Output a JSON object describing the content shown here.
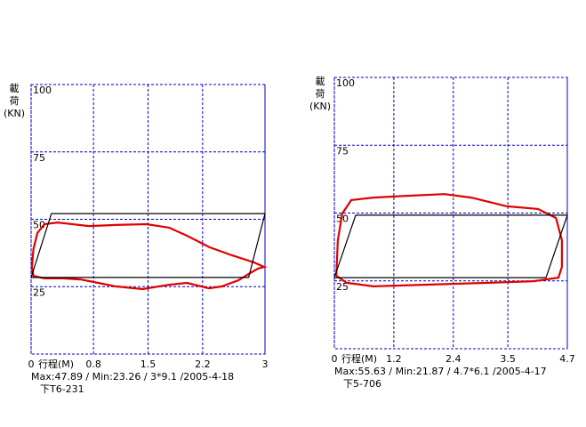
{
  "chart_data": [
    {
      "type": "line",
      "y_label": [
        "載",
        "荷",
        "(KN)"
      ],
      "x_label": "行程(M)",
      "xlim": [
        0,
        3
      ],
      "xticks": [
        0,
        0.8,
        1.5,
        2.2,
        3
      ],
      "ylim": [
        0,
        100
      ],
      "yticks": [
        25,
        50,
        75,
        100
      ],
      "grid": true,
      "series": [
        {
          "color": "#e00000",
          "x": [
            0.01,
            0.03,
            0.08,
            0.17,
            0.34,
            0.74,
            1.08,
            1.48,
            1.77,
            2.0,
            2.29,
            2.58,
            2.86,
            2.99,
            2.91,
            2.79,
            2.66,
            2.45,
            2.28,
            2.0,
            1.77,
            1.43,
            1.08,
            0.86,
            0.63,
            0.4,
            0.17,
            0.03,
            0.01
          ],
          "values": [
            32.3,
            38.9,
            44.9,
            48.2,
            48.8,
            47.5,
            47.9,
            48.2,
            46.9,
            43.9,
            39.6,
            36.6,
            34.0,
            32.3,
            31.7,
            29.7,
            27.4,
            25.1,
            24.4,
            26.4,
            25.7,
            24.1,
            25.1,
            26.4,
            27.7,
            28.1,
            28.1,
            29.0,
            32.3
          ]
        },
        {
          "color": "#000000",
          "x": [
            0,
            0.26,
            3,
            2.79,
            0
          ],
          "values": [
            28.4,
            52.1,
            52.1,
            28.4,
            28.4
          ]
        }
      ],
      "footer": [
        "Max:47.89 / Min:23.26 / 3*9.1 /2005-4-18",
        "下T6-231"
      ]
    },
    {
      "type": "line",
      "y_label": [
        "載",
        "荷",
        "(KN)"
      ],
      "x_label": "行程(M)",
      "xlim": [
        0,
        4.7
      ],
      "xticks": [
        0,
        1.2,
        2.4,
        3.5,
        4.7
      ],
      "ylim": [
        0,
        100
      ],
      "yticks": [
        25,
        50,
        75,
        100
      ],
      "grid": true,
      "series": [
        {
          "color": "#e00000",
          "x": [
            0.04,
            0.07,
            0.16,
            0.34,
            0.79,
            1.51,
            2.22,
            2.76,
            3.48,
            4.11,
            4.47,
            4.59,
            4.59,
            4.52,
            4.02,
            3.12,
            1.87,
            0.79,
            0.25,
            0.04
          ],
          "values": [
            26.9,
            40.0,
            49.8,
            54.8,
            55.7,
            56.4,
            57.0,
            55.7,
            52.5,
            51.5,
            48.2,
            40.0,
            30.2,
            26.2,
            24.9,
            24.3,
            23.6,
            23.0,
            24.3,
            26.9
          ]
        },
        {
          "color": "#000000",
          "x": [
            0,
            0.43,
            4.7,
            4.27,
            0
          ],
          "values": [
            26.2,
            49.2,
            49.2,
            26.2,
            26.2
          ]
        }
      ],
      "footer": [
        "Max:55.63 / Min:21.87 / 4.7*6.1 /2005-4-17",
        "下5-706"
      ]
    }
  ]
}
